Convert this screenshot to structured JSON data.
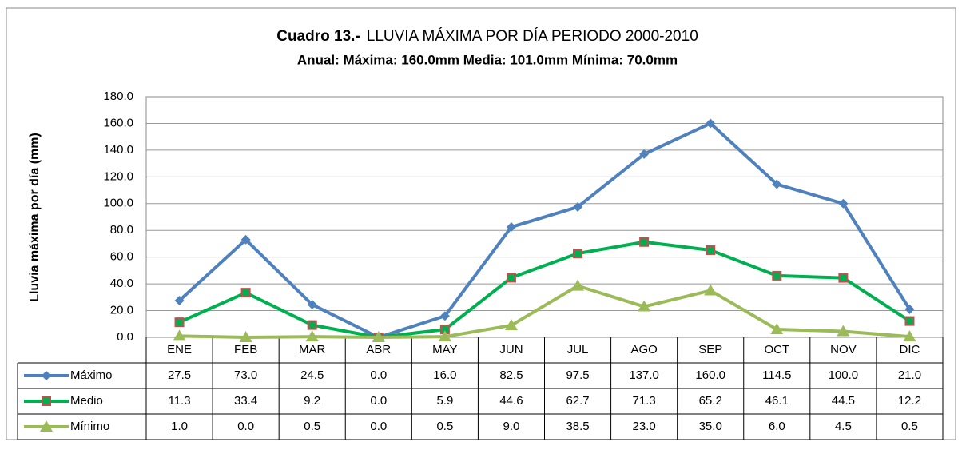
{
  "chart_data": {
    "type": "line",
    "title_prefix": "Cuadro 13.-",
    "title": "LLUVIA MÁXIMA POR DÍA PERIODO 2000-2010",
    "subtitle": "Anual: Máxima: 160.0mm Media: 101.0mm Mínima: 70.0mm",
    "y_label": "Lluvia máxima por día (mm)",
    "categories": [
      "ENE",
      "FEB",
      "MAR",
      "ABR",
      "MAY",
      "JUN",
      "JUL",
      "AGO",
      "SEP",
      "OCT",
      "NOV",
      "DIC"
    ],
    "ylim": [
      0,
      180
    ],
    "yticks": [
      {
        "value": 0,
        "label": "0.0"
      },
      {
        "value": 20,
        "label": "20.0"
      },
      {
        "value": 40,
        "label": "40.0"
      },
      {
        "value": 60,
        "label": "60.0"
      },
      {
        "value": 80,
        "label": "80.0"
      },
      {
        "value": 100,
        "label": "100.0"
      },
      {
        "value": 120,
        "label": "120.0"
      },
      {
        "value": 140,
        "label": "140.0"
      },
      {
        "value": 160,
        "label": "160.0"
      },
      {
        "value": 180,
        "label": "180.0"
      }
    ],
    "grid": true,
    "series": [
      {
        "name": "Máximo",
        "color": "#4f81bd",
        "marker": "diamond",
        "values": [
          27.5,
          73,
          24.5,
          0,
          16,
          82.5,
          97.5,
          137,
          160,
          114.5,
          100,
          21
        ],
        "value_labels": [
          "27.5",
          "73.0",
          "24.5",
          "0.0",
          "16.0",
          "82.5",
          "97.5",
          "137.0",
          "160.0",
          "114.5",
          "100.0",
          "21.0"
        ]
      },
      {
        "name": "Medio",
        "color": "#00b050",
        "marker": "square",
        "values": [
          11.3,
          33.4,
          9.2,
          0,
          5.9,
          44.6,
          62.7,
          71.3,
          65.2,
          46.1,
          44.5,
          12.2
        ],
        "value_labels": [
          "11.3",
          "33.4",
          "9.2",
          "0.0",
          "5.9",
          "44.6",
          "62.7",
          "71.3",
          "65.2",
          "46.1",
          "44.5",
          "12.2"
        ]
      },
      {
        "name": "Mínimo",
        "color": "#9bbb59",
        "marker": "triangle",
        "values": [
          1,
          0,
          0.5,
          0,
          0.5,
          9,
          38.5,
          23,
          35,
          6,
          4.5,
          0.5
        ],
        "value_labels": [
          "1.0",
          "0.0",
          "0.5",
          "0.0",
          "0.5",
          "9.0",
          "38.5",
          "23.0",
          "35.0",
          "6.0",
          "4.5",
          "0.5"
        ]
      }
    ]
  }
}
